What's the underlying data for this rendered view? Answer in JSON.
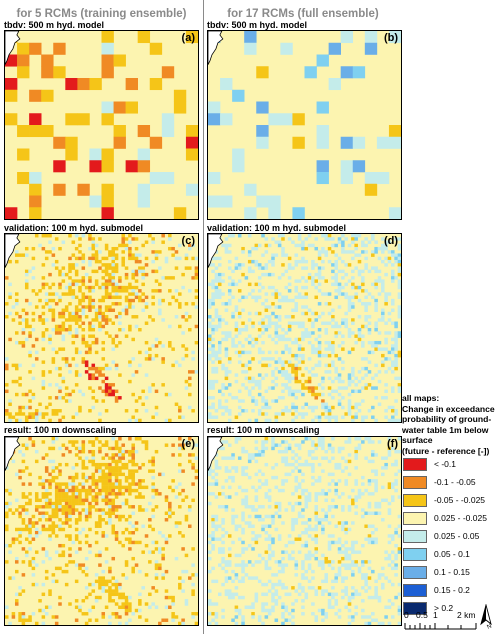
{
  "header": {
    "left": "for 5 RCMs (training ensemble)",
    "right": "for 17 RCMs (full ensemble)"
  },
  "rows": {
    "r1_left": "tbdv: 500 m hyd. model",
    "r1_right": "tbdv: 500 m hyd. model",
    "r2_left": "validation: 100 m hyd. submodel",
    "r2_right": "validation: 100 m hyd. submodel",
    "r3_left": "result: 100 m downscaling",
    "r3_right": "result: 100 m downscaling"
  },
  "panels": {
    "a": "(a)",
    "b": "(b)",
    "c": "(c)",
    "d": "(d)",
    "e": "(e)",
    "f": "(f)"
  },
  "legend": {
    "title_lines": [
      "all maps:",
      "Change in exceedance",
      "probability of ground-",
      "water table 1m below",
      "surface",
      "(future - reference [-])"
    ],
    "items": [
      {
        "label": "< -0.1",
        "color": "#e31a1c"
      },
      {
        "label": "-0.1 - -0.05",
        "color": "#f08a24"
      },
      {
        "label": "-0.05 - -0.025",
        "color": "#f5c518"
      },
      {
        "label": "0.025 - -0.025",
        "color": "#fcf4b0"
      },
      {
        "label": "0.025 - 0.05",
        "color": "#c4ecea"
      },
      {
        "label": "0.05 - 0.1",
        "color": "#7fd0f0"
      },
      {
        "label": "0.1 - 0.15",
        "color": "#6aaee8"
      },
      {
        "label": "0.15 - 0.2",
        "color": "#1c5fd4"
      },
      {
        "label": "> 0.2",
        "color": "#0a2a6e"
      }
    ]
  },
  "scalebar": {
    "labels": [
      "0",
      "0.5",
      "1",
      "2 km"
    ]
  },
  "north": "N"
}
